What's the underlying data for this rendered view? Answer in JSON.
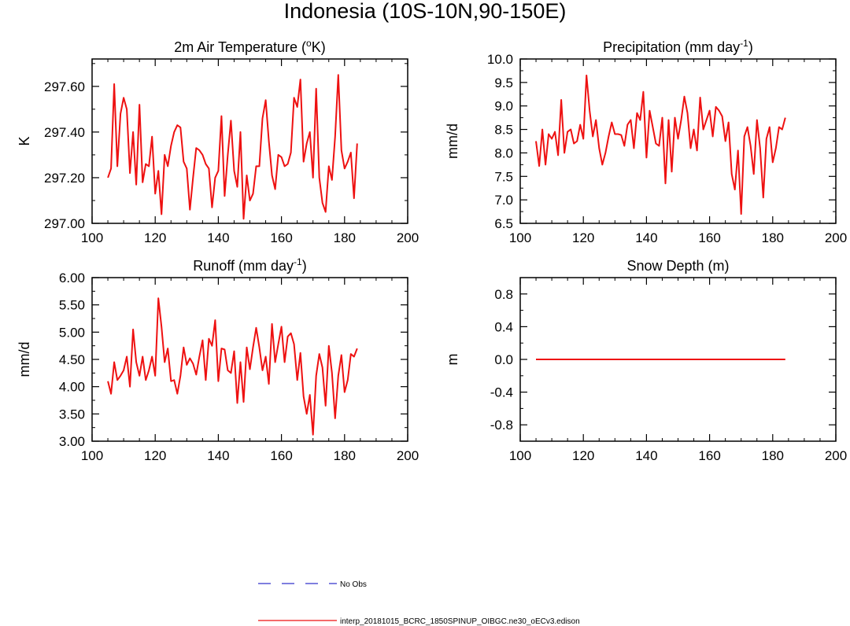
{
  "figure": {
    "title": "Indonesia (10S-10N,90-150E)",
    "legend": [
      {
        "label": "No Obs",
        "color": "#3333cc",
        "dash": true
      },
      {
        "label": "interp_20181015_BCRC_1850SPINUP_OIBGC.ne30_oECv3.edison",
        "color": "#ee1111",
        "dash": false
      }
    ]
  },
  "chart_data": [
    {
      "type": "line",
      "title": "2m Air Temperature (",
      "title_sup": "o",
      "title_tail": "K)",
      "xlabel": "",
      "ylabel": "K",
      "xlim": [
        100,
        200
      ],
      "ylim": [
        297.0,
        297.72
      ],
      "xticks": [
        100,
        120,
        140,
        160,
        180,
        200
      ],
      "yticks": [
        297.0,
        297.2,
        297.4,
        297.6
      ],
      "ytick_labels": [
        "297.00",
        "297.20",
        "297.40",
        "297.60"
      ],
      "series": [
        {
          "color": "#ee1111",
          "x": [
            105,
            106,
            107,
            108,
            109,
            110,
            111,
            112,
            113,
            114,
            115,
            116,
            117,
            118,
            119,
            120,
            121,
            122,
            123,
            124,
            125,
            126,
            127,
            128,
            129,
            130,
            131,
            132,
            133,
            134,
            135,
            136,
            137,
            138,
            139,
            140,
            141,
            142,
            143,
            144,
            145,
            146,
            147,
            148,
            149,
            150,
            151,
            152,
            153,
            154,
            155,
            156,
            157,
            158,
            159,
            160,
            161,
            162,
            163,
            164,
            165,
            166,
            167,
            168,
            169,
            170,
            171,
            172,
            173,
            174,
            175,
            176,
            177,
            178,
            179,
            180,
            181,
            182,
            183,
            184
          ],
          "values": [
            297.2,
            297.24,
            297.61,
            297.25,
            297.48,
            297.55,
            297.5,
            297.22,
            297.4,
            297.17,
            297.52,
            297.18,
            297.26,
            297.25,
            297.38,
            297.13,
            297.23,
            297.04,
            297.3,
            297.25,
            297.34,
            297.4,
            297.43,
            297.42,
            297.27,
            297.24,
            297.06,
            297.2,
            297.33,
            297.32,
            297.3,
            297.26,
            297.24,
            297.07,
            297.2,
            297.23,
            297.47,
            297.12,
            297.3,
            297.45,
            297.23,
            297.16,
            297.4,
            297.02,
            297.21,
            297.1,
            297.13,
            297.25,
            297.25,
            297.46,
            297.54,
            297.36,
            297.21,
            297.15,
            297.3,
            297.29,
            297.25,
            297.26,
            297.31,
            297.55,
            297.51,
            297.63,
            297.27,
            297.35,
            297.4,
            297.2,
            297.59,
            297.2,
            297.09,
            297.05,
            297.25,
            297.19,
            297.38,
            297.65,
            297.32,
            297.24,
            297.27,
            297.31,
            297.11,
            297.35
          ]
        }
      ]
    },
    {
      "type": "line",
      "title": "Precipitation (mm day",
      "title_sup": "-1",
      "title_tail": ")",
      "xlabel": "",
      "ylabel": "mm/d",
      "xlim": [
        100,
        200
      ],
      "ylim": [
        6.5,
        10.0
      ],
      "xticks": [
        100,
        120,
        140,
        160,
        180,
        200
      ],
      "yticks": [
        6.5,
        7.0,
        7.5,
        8.0,
        8.5,
        9.0,
        9.5,
        10.0
      ],
      "ytick_labels": [
        "6.5",
        "7.0",
        "7.5",
        "8.0",
        "8.5",
        "9.0",
        "9.5",
        "10.0"
      ],
      "series": [
        {
          "color": "#ee1111",
          "x": [
            105,
            106,
            107,
            108,
            109,
            110,
            111,
            112,
            113,
            114,
            115,
            116,
            117,
            118,
            119,
            120,
            121,
            122,
            123,
            124,
            125,
            126,
            127,
            128,
            129,
            130,
            131,
            132,
            133,
            134,
            135,
            136,
            137,
            138,
            139,
            140,
            141,
            142,
            143,
            144,
            145,
            146,
            147,
            148,
            149,
            150,
            151,
            152,
            153,
            154,
            155,
            156,
            157,
            158,
            159,
            160,
            161,
            162,
            163,
            164,
            165,
            166,
            167,
            168,
            169,
            170,
            171,
            172,
            173,
            174,
            175,
            176,
            177,
            178,
            179,
            180,
            181,
            182,
            183,
            184
          ],
          "values": [
            8.25,
            7.72,
            8.5,
            7.75,
            8.4,
            8.3,
            8.45,
            7.95,
            9.13,
            8.0,
            8.45,
            8.5,
            8.2,
            8.25,
            8.6,
            8.3,
            9.65,
            8.9,
            8.35,
            8.7,
            8.1,
            7.75,
            8.0,
            8.35,
            8.65,
            8.4,
            8.4,
            8.38,
            8.15,
            8.6,
            8.7,
            8.1,
            8.85,
            8.7,
            9.3,
            7.9,
            8.9,
            8.55,
            8.2,
            8.15,
            8.75,
            7.35,
            8.7,
            7.6,
            8.75,
            8.3,
            8.7,
            9.2,
            8.85,
            8.1,
            8.5,
            8.05,
            9.18,
            8.5,
            8.7,
            8.9,
            8.35,
            8.98,
            8.9,
            8.78,
            8.25,
            8.65,
            7.55,
            7.22,
            8.05,
            6.7,
            8.35,
            8.55,
            8.15,
            7.55,
            8.7,
            8.1,
            7.05,
            8.3,
            8.55,
            7.8,
            8.1,
            8.55,
            8.5,
            8.75
          ]
        }
      ]
    },
    {
      "type": "line",
      "title": "Runoff (mm day",
      "title_sup": "-1",
      "title_tail": ")",
      "xlabel": "",
      "ylabel": "mm/d",
      "xlim": [
        100,
        200
      ],
      "ylim": [
        3.0,
        6.0
      ],
      "xticks": [
        100,
        120,
        140,
        160,
        180,
        200
      ],
      "yticks": [
        3.0,
        3.5,
        4.0,
        4.5,
        5.0,
        5.5,
        6.0
      ],
      "ytick_labels": [
        "3.00",
        "3.50",
        "4.00",
        "4.50",
        "5.00",
        "5.50",
        "6.00"
      ],
      "series": [
        {
          "color": "#ee1111",
          "x": [
            105,
            106,
            107,
            108,
            109,
            110,
            111,
            112,
            113,
            114,
            115,
            116,
            117,
            118,
            119,
            120,
            121,
            122,
            123,
            124,
            125,
            126,
            127,
            128,
            129,
            130,
            131,
            132,
            133,
            134,
            135,
            136,
            137,
            138,
            139,
            140,
            141,
            142,
            143,
            144,
            145,
            146,
            147,
            148,
            149,
            150,
            151,
            152,
            153,
            154,
            155,
            156,
            157,
            158,
            159,
            160,
            161,
            162,
            163,
            164,
            165,
            166,
            167,
            168,
            169,
            170,
            171,
            172,
            173,
            174,
            175,
            176,
            177,
            178,
            179,
            180,
            181,
            182,
            183,
            184
          ],
          "values": [
            4.1,
            3.87,
            4.45,
            4.12,
            4.2,
            4.3,
            4.55,
            4.0,
            5.05,
            4.45,
            4.2,
            4.55,
            4.12,
            4.3,
            4.55,
            4.2,
            5.62,
            5.1,
            4.45,
            4.7,
            4.1,
            4.12,
            3.87,
            4.2,
            4.72,
            4.4,
            4.52,
            4.42,
            4.22,
            4.55,
            4.85,
            4.12,
            4.88,
            4.75,
            5.22,
            4.1,
            4.7,
            4.68,
            4.3,
            4.25,
            4.65,
            3.7,
            4.45,
            3.72,
            4.72,
            4.32,
            4.72,
            5.08,
            4.72,
            4.3,
            4.55,
            4.05,
            5.15,
            4.45,
            4.78,
            5.1,
            4.45,
            4.92,
            4.98,
            4.78,
            4.12,
            4.62,
            3.82,
            3.5,
            3.85,
            3.12,
            4.2,
            4.6,
            4.35,
            3.65,
            4.75,
            4.25,
            3.42,
            4.2,
            4.58,
            3.9,
            4.12,
            4.6,
            4.55,
            4.7
          ]
        }
      ]
    },
    {
      "type": "line",
      "title": "Snow Depth (m)",
      "title_sup": "",
      "title_tail": "",
      "xlabel": "",
      "ylabel": "m",
      "xlim": [
        100,
        200
      ],
      "ylim": [
        -1.0,
        1.0
      ],
      "xticks": [
        100,
        120,
        140,
        160,
        180,
        200
      ],
      "yticks": [
        -0.8,
        -0.4,
        0.0,
        0.4,
        0.8
      ],
      "ytick_labels": [
        "-0.8",
        "-0.4",
        "0.0",
        "0.4",
        "0.8"
      ],
      "series": [
        {
          "color": "#ee1111",
          "x": [
            105,
            184
          ],
          "values": [
            0.0,
            0.0
          ]
        }
      ]
    }
  ]
}
